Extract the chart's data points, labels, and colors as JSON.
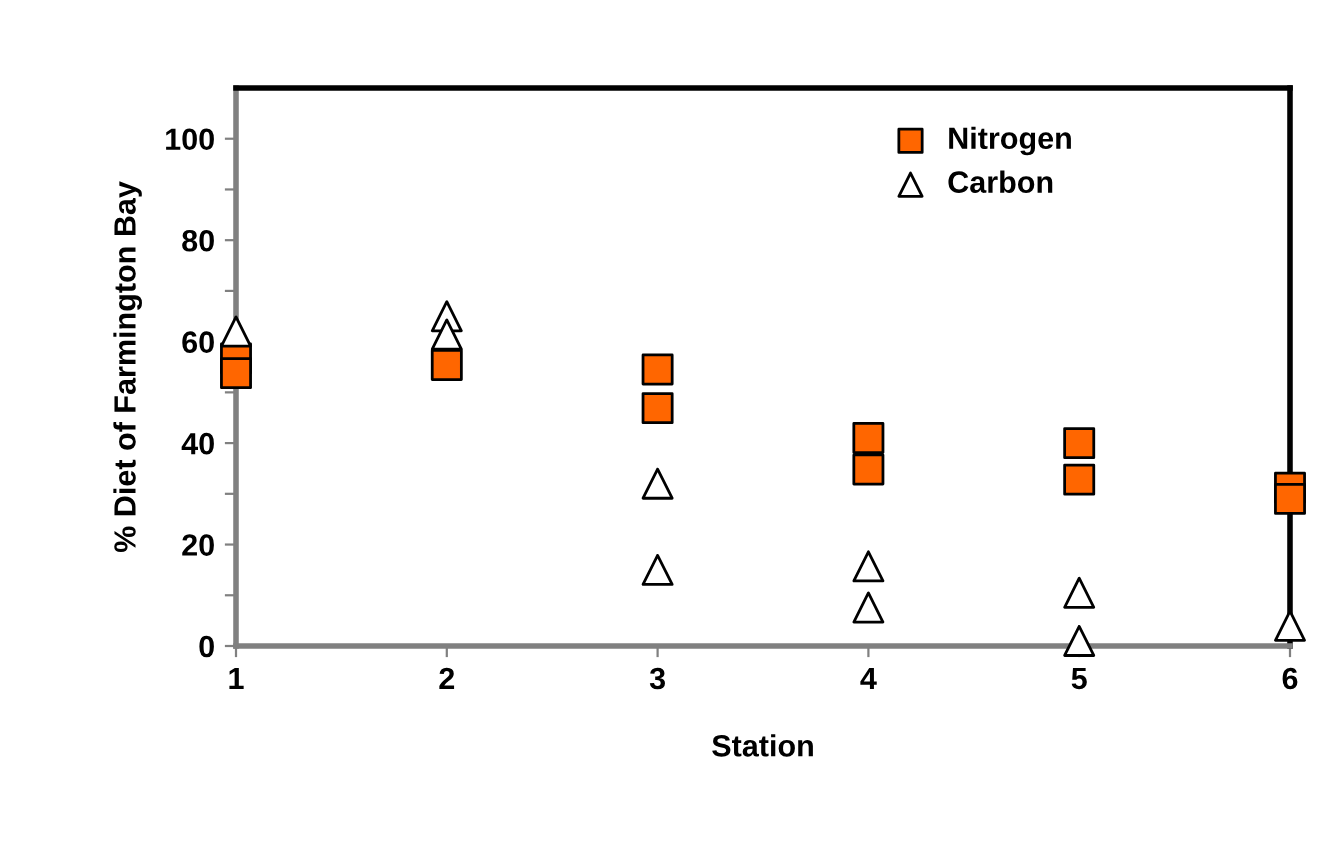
{
  "chart_data": {
    "type": "scatter",
    "xlabel": "Station",
    "ylabel": "% Diet of Farmington Bay",
    "series": [
      {
        "name": "Nitrogen",
        "color": "#ff6600",
        "marker": "square",
        "x": [
          1,
          1,
          2,
          3,
          3,
          4,
          4,
          5,
          5,
          6,
          6
        ],
        "values": [
          56.7,
          53.8,
          55.4,
          54.5,
          46.9,
          41,
          34.8,
          40,
          32.8,
          31.2,
          29
        ]
      },
      {
        "name": "Carbon",
        "color": "#ffffff",
        "marker": "triangle",
        "x": [
          1,
          2,
          2,
          3,
          3,
          4,
          4,
          5,
          5,
          6
        ],
        "values": [
          62,
          65,
          61.4,
          32,
          15,
          15.7,
          7.6,
          10.5,
          1,
          4
        ]
      }
    ],
    "xlim": [
      1,
      6
    ],
    "xticks": [
      1,
      2,
      3,
      4,
      5,
      6
    ],
    "ylim": [
      0,
      110
    ],
    "yticks": [
      0,
      {
        "value": 10,
        "label": null
      },
      20,
      {
        "value": 30,
        "label": null
      },
      40,
      {
        "value": 50,
        "label": null
      },
      60,
      {
        "value": 70,
        "label": null
      },
      80,
      {
        "value": 90,
        "label": null
      },
      100
    ],
    "grid": false,
    "legend": "top right"
  }
}
